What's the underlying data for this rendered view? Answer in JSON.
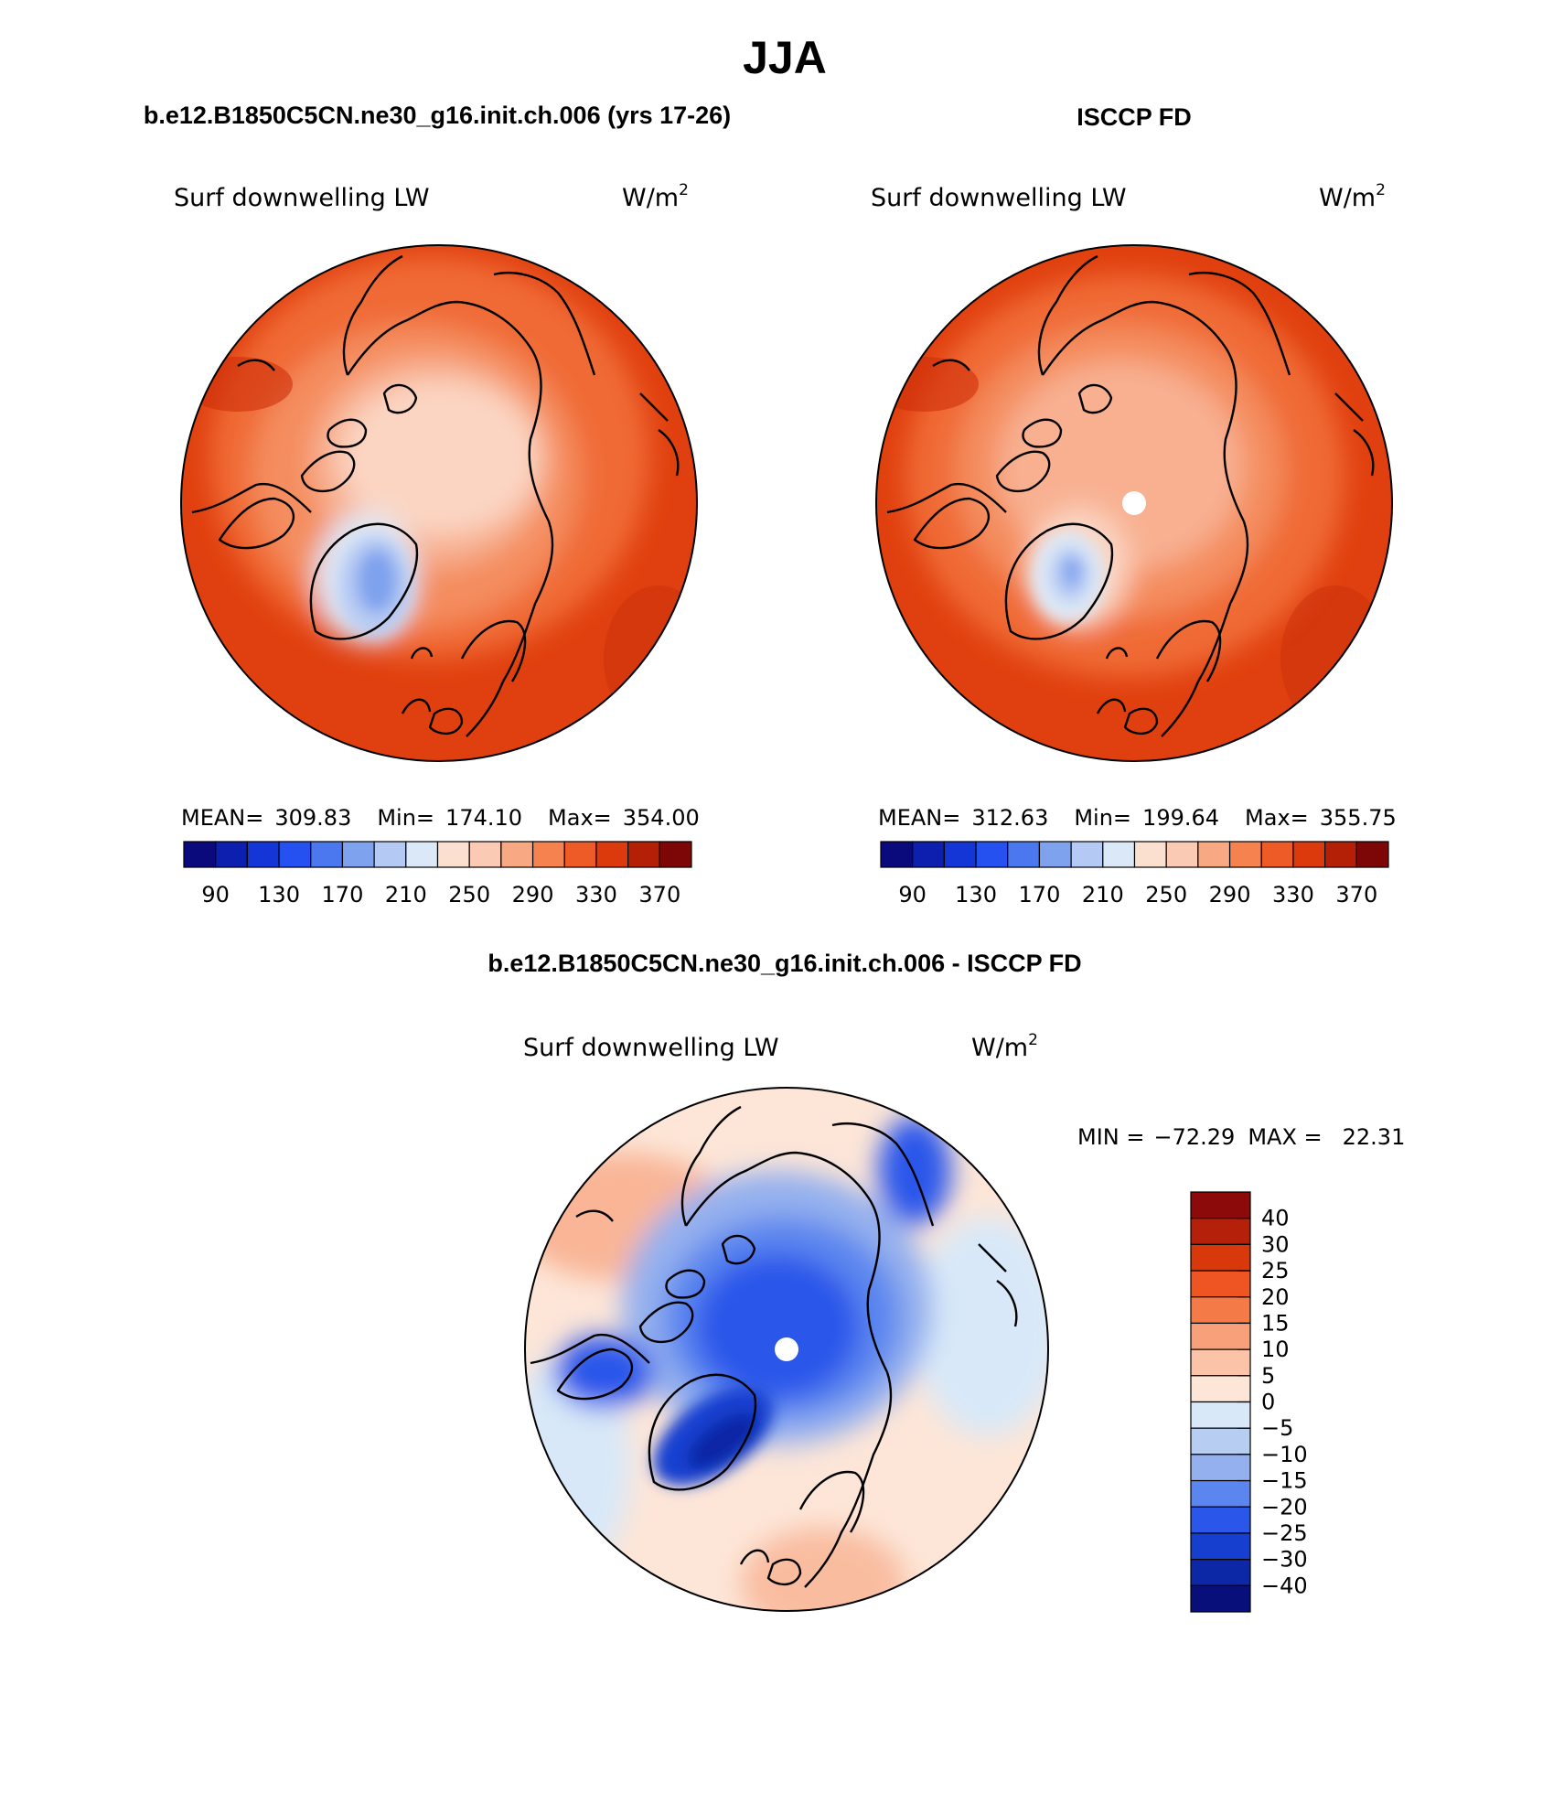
{
  "figure": {
    "season": "JJA",
    "panels": [
      {
        "case_title": "b.e12.B1850C5CN.ne30_g16.init.ch.006 (yrs 17-26)",
        "variable": "Surf downwelling LW",
        "units_base": "W/m",
        "units_exp": "2",
        "stats": {
          "mean_label": "MEAN=",
          "mean": "309.83",
          "min_label": "Min=",
          "min": "174.10",
          "max_label": "Max=",
          "max": "354.00"
        }
      },
      {
        "case_title": "ISCCP FD",
        "variable": "Surf downwelling LW",
        "units_base": "W/m",
        "units_exp": "2",
        "stats": {
          "mean_label": "MEAN=",
          "mean": "312.63",
          "min_label": "Min=",
          "min": "199.64",
          "max_label": "Max=",
          "max": "355.75"
        }
      },
      {
        "case_title": "b.e12.B1850C5CN.ne30_g16.init.ch.006 - ISCCP FD",
        "variable": "Surf downwelling LW",
        "units_base": "W/m",
        "units_exp": "2",
        "minmax": {
          "min_label": "MIN =",
          "min": "−72.29",
          "max_label": "MAX =",
          "max": "22.31"
        }
      }
    ],
    "field_colorbar": {
      "tick_labels": [
        "90",
        "130",
        "170",
        "210",
        "250",
        "290",
        "330",
        "370"
      ],
      "colors": [
        "#0a0a7d",
        "#0d1fae",
        "#1536d6",
        "#2451f0",
        "#4b78ef",
        "#7fa2ee",
        "#b4c9f3",
        "#dbe8f8",
        "#fbe0d0",
        "#fbcab4",
        "#f8a882",
        "#f5824f",
        "#ee5b26",
        "#dc3a0c",
        "#b42005",
        "#7d0606"
      ]
    },
    "diff_colorbar": {
      "tick_labels": [
        "40",
        "30",
        "25",
        "20",
        "15",
        "10",
        "5",
        "0",
        "−5",
        "−10",
        "−15",
        "−20",
        "−25",
        "−30",
        "−40"
      ],
      "colors": [
        "#8c0a0a",
        "#b5200a",
        "#d8380a",
        "#ee5522",
        "#f47a48",
        "#f7a07a",
        "#fbc3a8",
        "#fde6d8",
        "#d8e8f8",
        "#b8cdf2",
        "#94b0ee",
        "#5c86ef",
        "#2a57ea",
        "#163fd0",
        "#0d28a6",
        "#090f7a"
      ]
    }
  }
}
